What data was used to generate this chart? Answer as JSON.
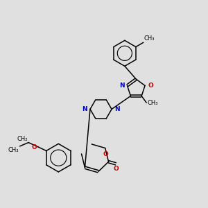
{
  "bg_color": "#e0e0e0",
  "line_color": "#000000",
  "N_color": "#0000cc",
  "O_color": "#cc0000",
  "font_size": 6.5,
  "lw": 1.1,
  "figsize": [
    3.0,
    3.0
  ],
  "dpi": 100,
  "xlim": [
    0,
    10
  ],
  "ylim": [
    0,
    10
  ]
}
